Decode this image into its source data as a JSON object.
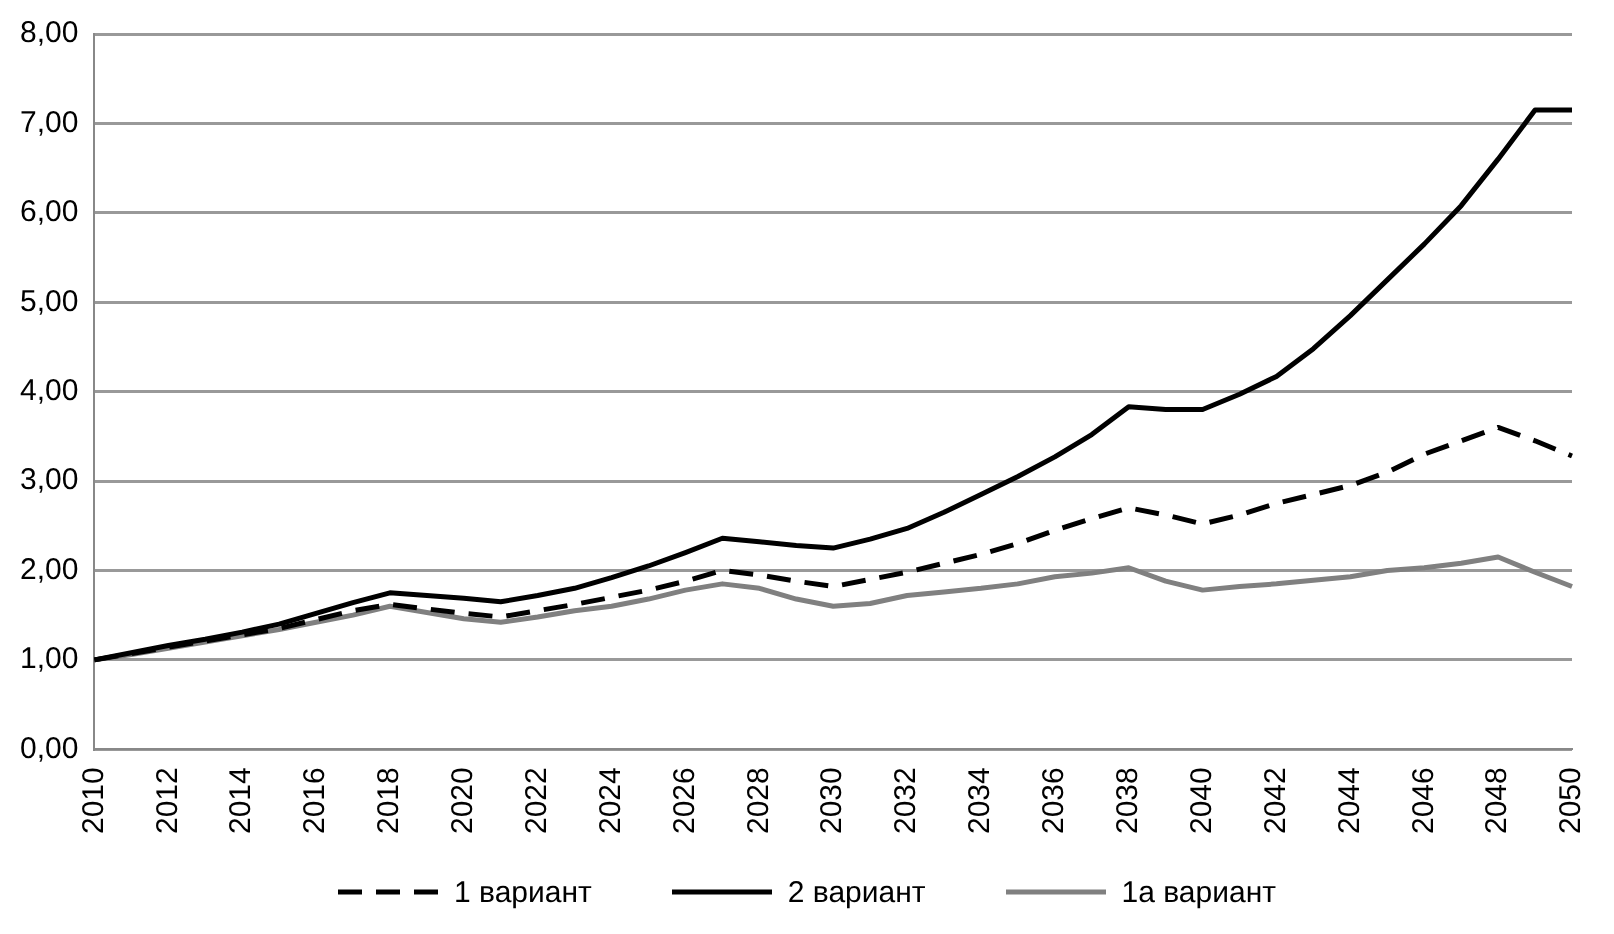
{
  "chart_data": {
    "type": "line",
    "categories": [
      "2010",
      null,
      "2012",
      null,
      "2014",
      null,
      "2016",
      null,
      "2018",
      null,
      "2020",
      null,
      "2022",
      null,
      "2024",
      null,
      "2026",
      null,
      "2028",
      null,
      "2030",
      null,
      "2032",
      null,
      "2034",
      null,
      "2036",
      null,
      "2038",
      null,
      "2040",
      null,
      "2042",
      null,
      "2044",
      null,
      "2046",
      null,
      "2048",
      null,
      "2050"
    ],
    "series": [
      {
        "name": "1 вариант",
        "color": "#000000",
        "line_style": "dashed",
        "values": [
          1.0,
          1.07,
          1.14,
          1.21,
          1.28,
          1.35,
          1.45,
          1.55,
          1.62,
          1.57,
          1.52,
          1.48,
          1.55,
          1.62,
          1.7,
          1.78,
          1.88,
          2.0,
          1.95,
          1.88,
          1.82,
          1.9,
          1.98,
          2.08,
          2.18,
          2.3,
          2.45,
          2.58,
          2.7,
          2.62,
          2.52,
          2.62,
          2.75,
          2.85,
          2.95,
          3.1,
          3.3,
          3.45,
          3.6,
          3.45,
          3.28
        ]
      },
      {
        "name": "2 вариант",
        "color": "#000000",
        "line_style": "solid",
        "values": [
          1.0,
          1.08,
          1.16,
          1.23,
          1.31,
          1.4,
          1.52,
          1.64,
          1.75,
          1.72,
          1.69,
          1.65,
          1.72,
          1.8,
          1.92,
          2.05,
          2.2,
          2.36,
          2.32,
          2.28,
          2.25,
          2.35,
          2.47,
          2.65,
          2.85,
          3.05,
          3.27,
          3.52,
          3.83,
          3.8,
          3.8,
          3.97,
          4.17,
          4.48,
          4.85,
          5.25,
          5.65,
          6.08,
          6.6,
          7.15,
          7.15
        ]
      },
      {
        "name": "1а вариант",
        "color": "#808080",
        "line_style": "solid",
        "values": [
          1.0,
          1.06,
          1.13,
          1.2,
          1.27,
          1.34,
          1.42,
          1.5,
          1.6,
          1.53,
          1.46,
          1.42,
          1.48,
          1.55,
          1.6,
          1.68,
          1.78,
          1.85,
          1.8,
          1.68,
          1.6,
          1.63,
          1.72,
          1.76,
          1.8,
          1.85,
          1.93,
          1.97,
          2.03,
          1.88,
          1.78,
          1.82,
          1.85,
          1.89,
          1.93,
          2.0,
          2.03,
          2.08,
          2.15,
          1.98,
          1.82
        ]
      }
    ],
    "ylim": [
      0,
      8
    ],
    "yticks": [
      {
        "value": 0,
        "label": "0,00"
      },
      {
        "value": 1,
        "label": "1,00"
      },
      {
        "value": 2,
        "label": "2,00"
      },
      {
        "value": 3,
        "label": "3,00"
      },
      {
        "value": 4,
        "label": "4,00"
      },
      {
        "value": 5,
        "label": "5,00"
      },
      {
        "value": 6,
        "label": "6,00"
      },
      {
        "value": 7,
        "label": "7,00"
      },
      {
        "value": 8,
        "label": "8,00"
      }
    ],
    "grid": "y",
    "legend": "bottom",
    "marker": "none"
  }
}
